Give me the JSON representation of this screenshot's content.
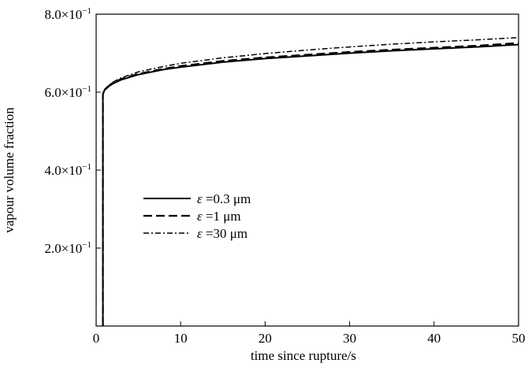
{
  "chart_data": {
    "type": "line",
    "xlabel": "time since rupture/s",
    "ylabel": "vapour volume fraction",
    "xlim": [
      0,
      50
    ],
    "ylim": [
      0,
      0.8
    ],
    "grid": false,
    "legend_placement": "center-left",
    "x_ticks": [
      {
        "value": 0,
        "label": "0"
      },
      {
        "value": 10,
        "label": "10"
      },
      {
        "value": 20,
        "label": "20"
      },
      {
        "value": 30,
        "label": "30"
      },
      {
        "value": 40,
        "label": "40"
      },
      {
        "value": 50,
        "label": "50"
      }
    ],
    "y_ticks": [
      {
        "value": 0.2,
        "mant": "2.0",
        "exp": "−1"
      },
      {
        "value": 0.4,
        "mant": "4.0",
        "exp": "−1"
      },
      {
        "value": 0.6,
        "mant": "6.0",
        "exp": "−1"
      },
      {
        "value": 0.8,
        "mant": "8.0",
        "exp": "−1"
      }
    ],
    "series": [
      {
        "symbol": "ε",
        "name": "=0.3 μm",
        "dash": "solid",
        "x": [
          0.8,
          0.8,
          1.0,
          1.5,
          2,
          3,
          5,
          8,
          10,
          15,
          20,
          25,
          30,
          35,
          40,
          45,
          50
        ],
        "y": [
          0.0,
          0.595,
          0.605,
          0.615,
          0.622,
          0.632,
          0.645,
          0.658,
          0.664,
          0.677,
          0.686,
          0.693,
          0.7,
          0.706,
          0.711,
          0.716,
          0.722
        ]
      },
      {
        "symbol": "ε",
        "name": "=1 μm",
        "dash": "dash",
        "x": [
          0.8,
          0.8,
          1.0,
          1.5,
          2,
          3,
          5,
          8,
          10,
          15,
          20,
          25,
          30,
          35,
          40,
          45,
          50
        ],
        "y": [
          0.0,
          0.595,
          0.606,
          0.616,
          0.624,
          0.634,
          0.647,
          0.66,
          0.667,
          0.68,
          0.689,
          0.696,
          0.703,
          0.709,
          0.714,
          0.719,
          0.726
        ]
      },
      {
        "symbol": "ε",
        "name": "=30 μm",
        "dash": "dashdot",
        "x": [
          0.8,
          0.8,
          1.0,
          1.5,
          2,
          3,
          5,
          8,
          10,
          15,
          20,
          25,
          30,
          35,
          40,
          45,
          50
        ],
        "y": [
          0.0,
          0.596,
          0.607,
          0.618,
          0.626,
          0.637,
          0.652,
          0.666,
          0.674,
          0.688,
          0.699,
          0.708,
          0.716,
          0.723,
          0.729,
          0.734,
          0.74
        ]
      }
    ]
  }
}
